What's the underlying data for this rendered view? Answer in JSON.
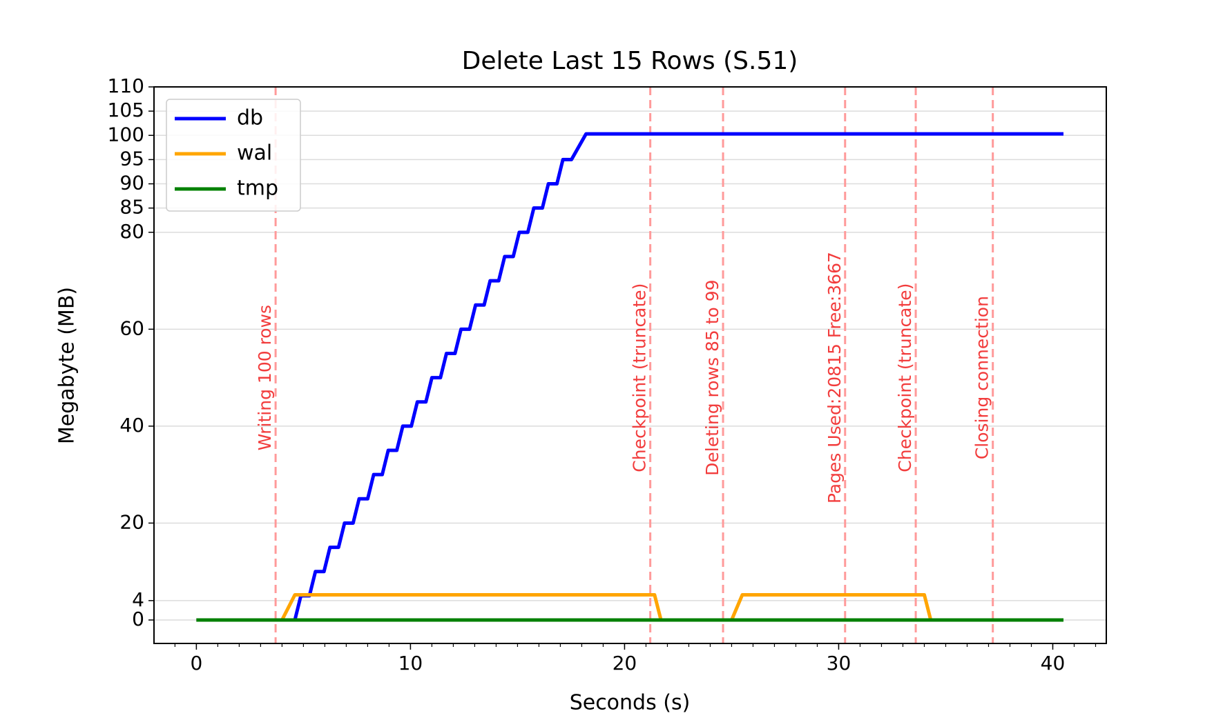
{
  "chart_data": {
    "type": "line",
    "title": "Delete Last 15 Rows (S.51)",
    "x_label": "Seconds (s)",
    "y_label": "Megabyte (MB)",
    "xlim": [
      -1.98,
      42.5
    ],
    "ylim": [
      -4.84,
      110
    ],
    "xticks": [
      0,
      10,
      20,
      30,
      40
    ],
    "yticks": [
      0,
      4,
      20,
      40,
      60,
      80,
      85,
      90,
      95,
      100,
      105,
      110
    ],
    "grid": true,
    "legend": "upper left",
    "series": [
      {
        "name": "db",
        "color": "#0000ff",
        "x": [
          0,
          4.6,
          4.88,
          5.28,
          5.56,
          5.96,
          6.24,
          6.64,
          6.92,
          7.32,
          7.6,
          8.0,
          8.28,
          8.68,
          8.96,
          9.36,
          9.64,
          10.04,
          10.32,
          10.72,
          11.0,
          11.4,
          11.68,
          12.08,
          12.36,
          12.76,
          13.04,
          13.44,
          13.72,
          14.12,
          14.4,
          14.8,
          15.08,
          15.48,
          15.76,
          16.16,
          16.44,
          16.84,
          17.12,
          17.52,
          18.2,
          40.5
        ],
        "values": [
          0,
          0,
          5,
          5,
          10,
          10,
          15,
          15,
          20,
          20,
          25,
          25,
          30,
          30,
          35,
          35,
          40,
          40,
          45,
          45,
          50,
          50,
          55,
          55,
          60,
          60,
          65,
          65,
          70,
          70,
          75,
          75,
          80,
          80,
          85,
          85,
          90,
          90,
          95,
          95,
          100.3,
          100.3
        ]
      },
      {
        "name": "wal",
        "color": "#ffa500",
        "x": [
          0,
          4.0,
          4.6,
          21.4,
          21.7,
          25.0,
          25.5,
          34.0,
          34.3,
          40.5
        ],
        "values": [
          0,
          0,
          5.2,
          5.2,
          0,
          0,
          5.2,
          5.2,
          0,
          0
        ]
      },
      {
        "name": "tmp",
        "color": "#008000",
        "x": [
          0,
          40.5
        ],
        "values": [
          0,
          0
        ]
      }
    ],
    "vline_color": "#ff9a9a",
    "vline_text_color": "#f23c3c",
    "vlines": [
      {
        "x": 3.7,
        "label": "Writing 100 rows"
      },
      {
        "x": 21.2,
        "label": "Checkpoint (truncate)"
      },
      {
        "x": 24.6,
        "label": "Deleting rows 85 to 99"
      },
      {
        "x": 30.3,
        "label": "Pages Used:20815 Free:3667"
      },
      {
        "x": 33.6,
        "label": "Checkpoint (truncate)"
      },
      {
        "x": 37.2,
        "label": "Closing connection"
      }
    ]
  }
}
